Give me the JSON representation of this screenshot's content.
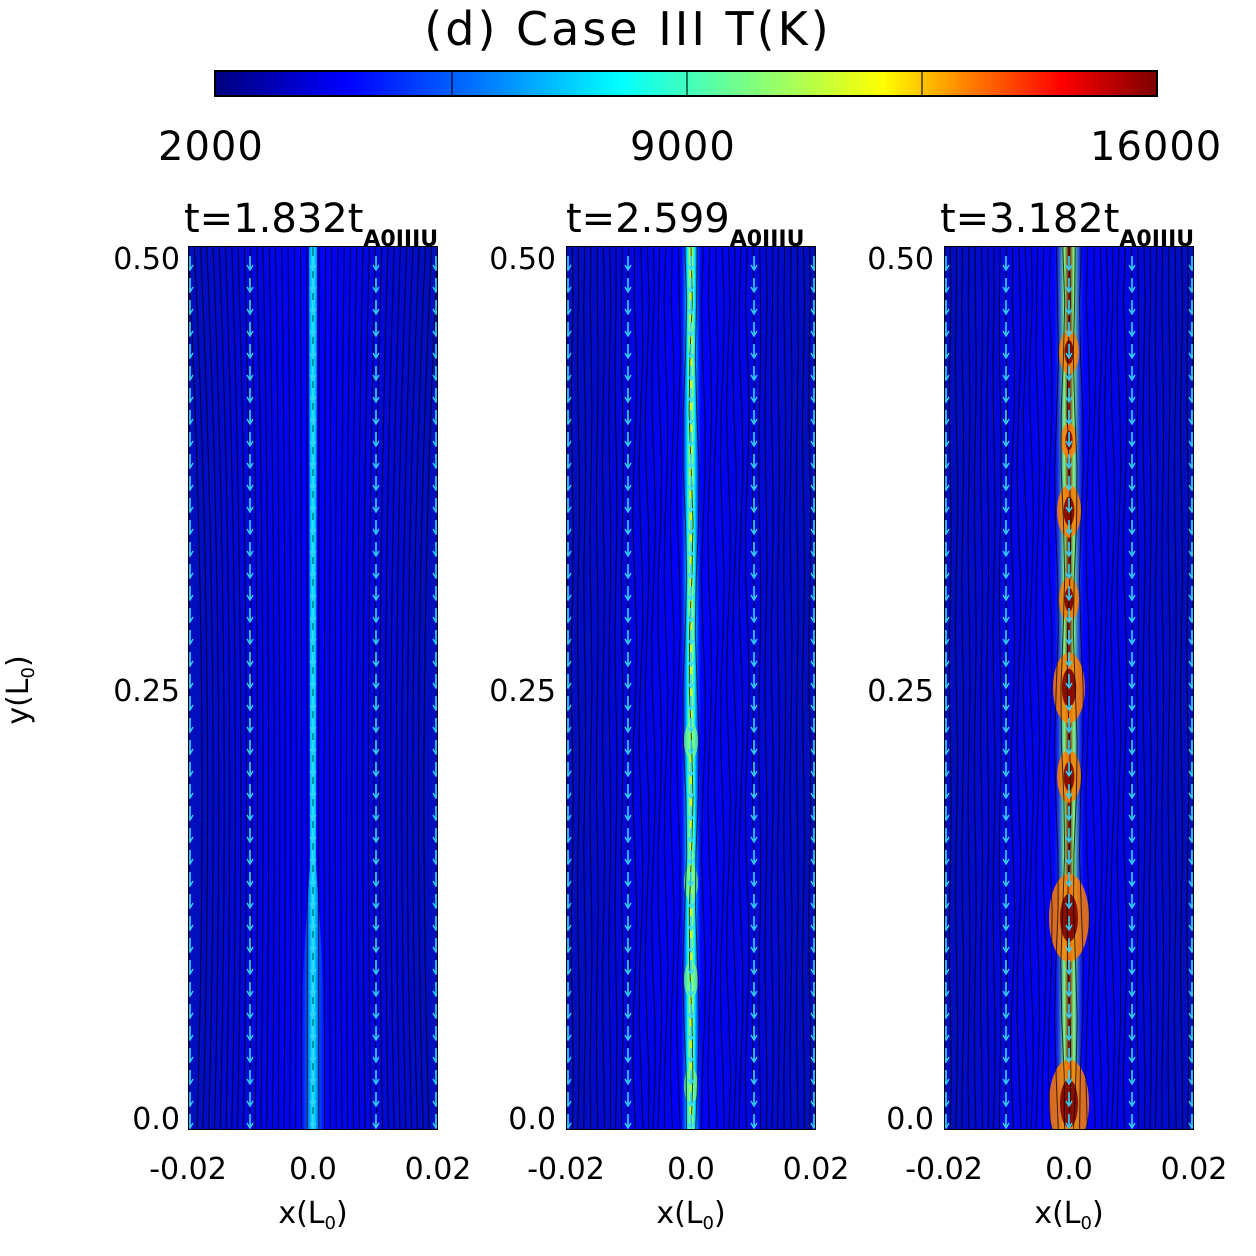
{
  "title": "(d) Case III T(K)",
  "colorbar": {
    "tick_labels": [
      "2000",
      "9000",
      "16000"
    ],
    "min": 2000,
    "max": 16000,
    "colormap": [
      "#00007f",
      "#0000ff",
      "#007fff",
      "#00ffff",
      "#7fff7f",
      "#ffff00",
      "#ff7f00",
      "#ff0000",
      "#7f0000"
    ]
  },
  "panels": [
    {
      "title_main": "t=1.832t",
      "title_sub": "A0IIIU",
      "peak_T": 7000,
      "background_T": 4200
    },
    {
      "title_main": "t=2.599",
      "title_sub": "A0IIIU",
      "peak_T": 10500,
      "background_T": 3500
    },
    {
      "title_main": "t=3.182t",
      "title_sub": "A0IIIU",
      "peak_T": 15500,
      "background_T": 3000
    }
  ],
  "axes": {
    "xlabel_main": "x(L",
    "xlabel_sub": "0",
    "xlabel_end": ")",
    "ylabel_main": "y(L",
    "ylabel_sub": "0",
    "ylabel_end": ")",
    "x_ticks": [
      "-0.02",
      "0.0",
      "0.02"
    ],
    "y_ticks": [
      "0.50",
      "0.25",
      "0.0"
    ],
    "xlim": [
      -0.02,
      0.02
    ],
    "ylim": [
      0.0,
      0.5
    ]
  },
  "chart_data": {
    "type": "heatmap",
    "title": "(d) Case III T(K)",
    "xlabel": "x(L0)",
    "ylabel": "y(L0)",
    "xlim": [
      -0.02,
      0.02
    ],
    "ylim": [
      0.0,
      0.5
    ],
    "colorbar_range": [
      2000,
      16000
    ],
    "series": [
      {
        "name": "t=1.832t A0IIIU",
        "peak_T": 7000
      },
      {
        "name": "t=2.599 A0IIIU",
        "peak_T": 10500
      },
      {
        "name": "t=3.182t A0IIIU",
        "peak_T": 15500
      }
    ]
  }
}
